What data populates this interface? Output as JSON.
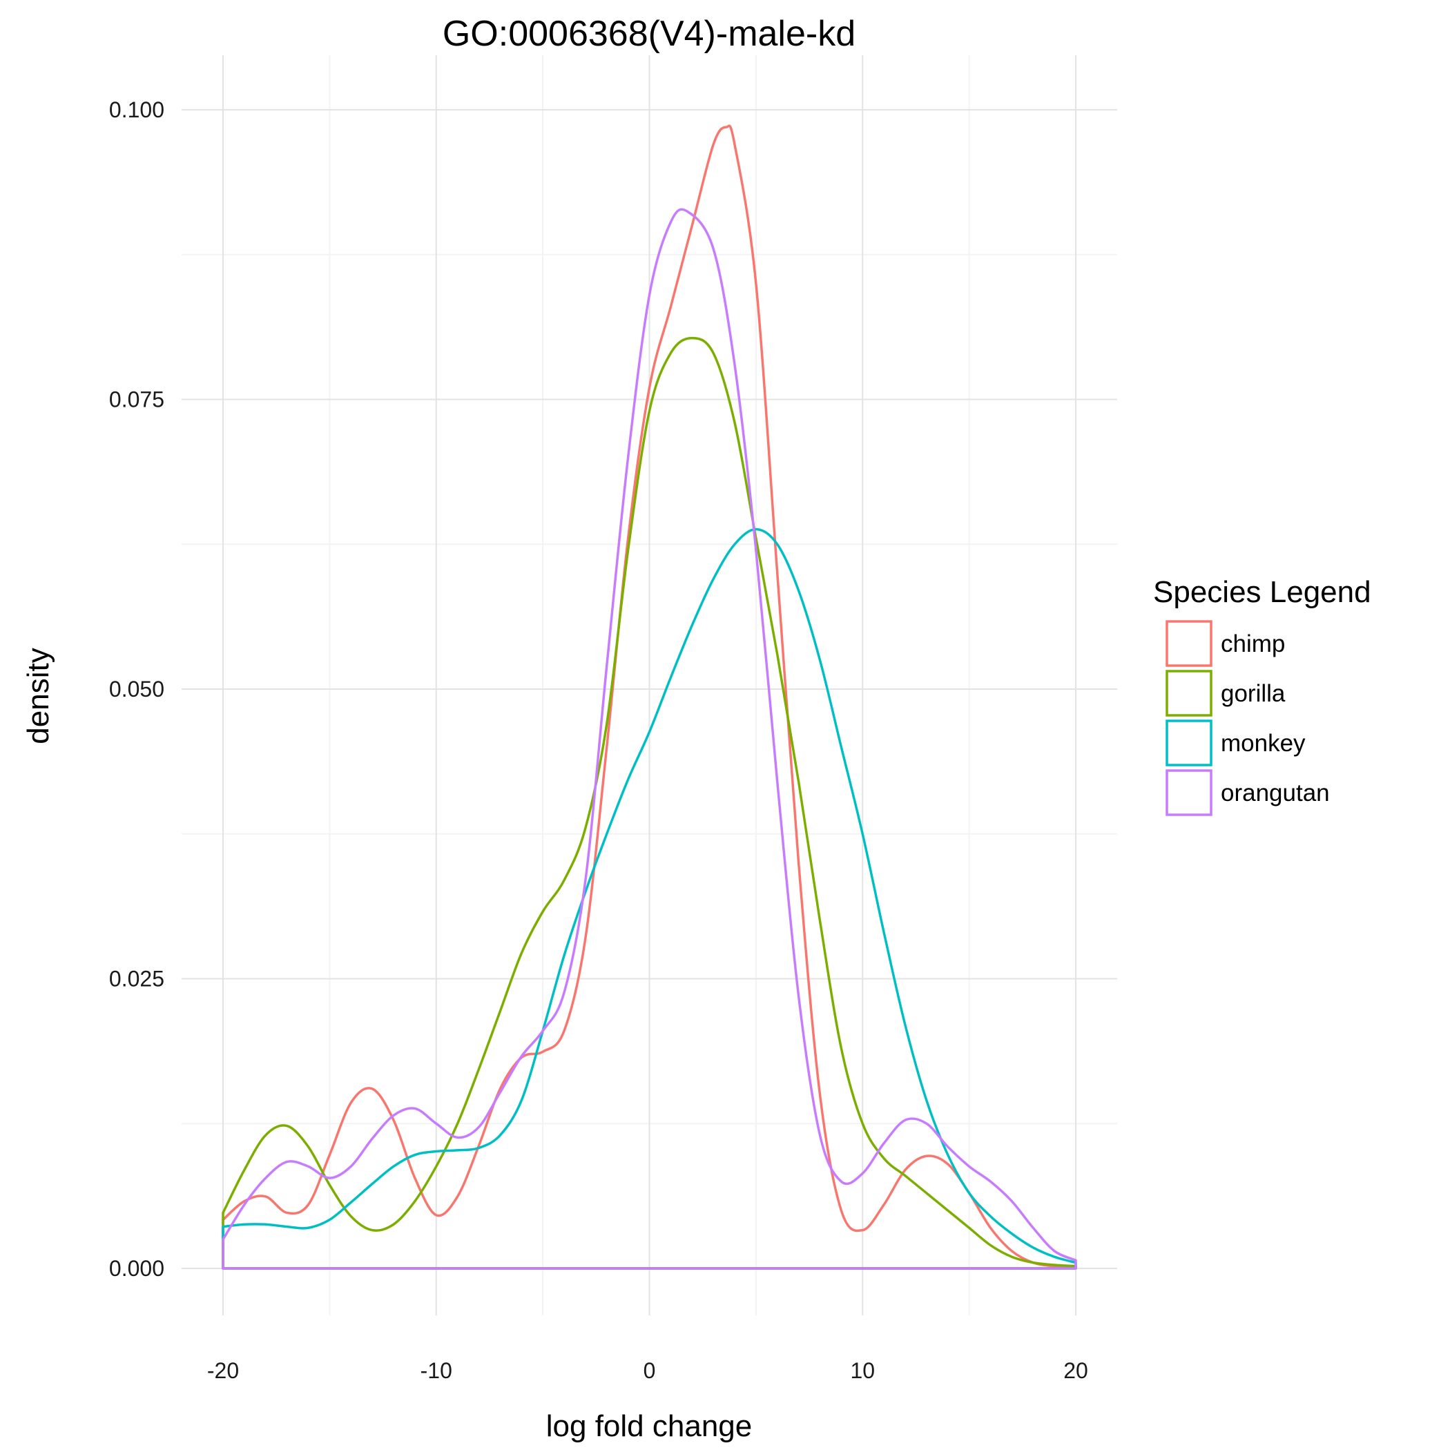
{
  "chart_data": {
    "type": "line",
    "title": "GO:0006368(V4)-male-kd",
    "xlabel": "log fold change",
    "ylabel": "density",
    "xlim": [
      -20,
      20
    ],
    "ylim": [
      0,
      0.1
    ],
    "x_ticks": [
      -20,
      -10,
      0,
      10,
      20
    ],
    "x_tick_labels": [
      "-20",
      "-10",
      "0",
      "10",
      "20"
    ],
    "y_ticks": [
      0,
      0.025,
      0.05,
      0.075,
      0.1
    ],
    "y_tick_labels": [
      "0.000",
      "0.025",
      "0.050",
      "0.075",
      "0.100"
    ],
    "grid": true,
    "legend": {
      "title": "Species Legend",
      "position": "right"
    },
    "series": [
      {
        "name": "chimp",
        "color": "#F8766D",
        "points": [
          [
            -20,
            0.0042
          ],
          [
            -19,
            0.0058
          ],
          [
            -18,
            0.0062
          ],
          [
            -17,
            0.0048
          ],
          [
            -16,
            0.0055
          ],
          [
            -15,
            0.0098
          ],
          [
            -14,
            0.0143
          ],
          [
            -13,
            0.0155
          ],
          [
            -12,
            0.0128
          ],
          [
            -11,
            0.0078
          ],
          [
            -10,
            0.0046
          ],
          [
            -9,
            0.0062
          ],
          [
            -8,
            0.0106
          ],
          [
            -7,
            0.0155
          ],
          [
            -6,
            0.0182
          ],
          [
            -5,
            0.0187
          ],
          [
            -4,
            0.0205
          ],
          [
            -3,
            0.0285
          ],
          [
            -2,
            0.045
          ],
          [
            -1,
            0.063
          ],
          [
            0,
            0.076
          ],
          [
            1,
            0.083
          ],
          [
            2,
            0.09
          ],
          [
            3,
            0.097
          ],
          [
            3.6,
            0.0985
          ],
          [
            4,
            0.097
          ],
          [
            5,
            0.085
          ],
          [
            6,
            0.06
          ],
          [
            7,
            0.035
          ],
          [
            8,
            0.015
          ],
          [
            9,
            0.005
          ],
          [
            10,
            0.0033
          ],
          [
            11,
            0.0055
          ],
          [
            12,
            0.0085
          ],
          [
            13,
            0.0097
          ],
          [
            14,
            0.009
          ],
          [
            15,
            0.0065
          ],
          [
            16,
            0.0035
          ],
          [
            17,
            0.0015
          ],
          [
            18,
            0.0005
          ],
          [
            19,
            0.0002
          ],
          [
            20,
            0.0002
          ]
        ]
      },
      {
        "name": "gorilla",
        "color": "#7CAE00",
        "points": [
          [
            -20,
            0.0048
          ],
          [
            -19,
            0.0085
          ],
          [
            -18,
            0.0115
          ],
          [
            -17,
            0.0123
          ],
          [
            -16,
            0.0105
          ],
          [
            -15,
            0.0072
          ],
          [
            -14,
            0.0045
          ],
          [
            -13,
            0.0033
          ],
          [
            -12,
            0.0038
          ],
          [
            -11,
            0.0058
          ],
          [
            -10,
            0.0088
          ],
          [
            -9,
            0.0125
          ],
          [
            -8,
            0.0172
          ],
          [
            -7,
            0.0222
          ],
          [
            -6,
            0.0272
          ],
          [
            -5,
            0.0308
          ],
          [
            -4,
            0.0335
          ],
          [
            -3,
            0.038
          ],
          [
            -2,
            0.047
          ],
          [
            -1,
            0.062
          ],
          [
            0,
            0.074
          ],
          [
            1,
            0.079
          ],
          [
            2,
            0.0803
          ],
          [
            3,
            0.079
          ],
          [
            4,
            0.073
          ],
          [
            5,
            0.063
          ],
          [
            6,
            0.053
          ],
          [
            7,
            0.042
          ],
          [
            8,
            0.03
          ],
          [
            9,
            0.019
          ],
          [
            10,
            0.0125
          ],
          [
            11,
            0.0095
          ],
          [
            12,
            0.008
          ],
          [
            13,
            0.0065
          ],
          [
            14,
            0.005
          ],
          [
            15,
            0.0035
          ],
          [
            16,
            0.002
          ],
          [
            17,
            0.001
          ],
          [
            18,
            0.0005
          ],
          [
            19,
            0.0003
          ],
          [
            20,
            0.0002
          ]
        ]
      },
      {
        "name": "monkey",
        "color": "#00BFC4",
        "points": [
          [
            -20,
            0.0036
          ],
          [
            -19,
            0.0038
          ],
          [
            -18,
            0.0038
          ],
          [
            -17,
            0.0036
          ],
          [
            -16,
            0.0035
          ],
          [
            -15,
            0.0042
          ],
          [
            -14,
            0.0057
          ],
          [
            -13,
            0.0073
          ],
          [
            -12,
            0.0088
          ],
          [
            -11,
            0.0098
          ],
          [
            -10,
            0.0101
          ],
          [
            -9,
            0.0102
          ],
          [
            -8,
            0.0104
          ],
          [
            -7,
            0.0115
          ],
          [
            -6,
            0.0145
          ],
          [
            -5,
            0.0205
          ],
          [
            -4,
            0.027
          ],
          [
            -3,
            0.0325
          ],
          [
            -2,
            0.0375
          ],
          [
            -1,
            0.0422
          ],
          [
            0,
            0.0463
          ],
          [
            1,
            0.051
          ],
          [
            2,
            0.0555
          ],
          [
            3,
            0.0595
          ],
          [
            4,
            0.0625
          ],
          [
            5,
            0.0638
          ],
          [
            6,
            0.0625
          ],
          [
            7,
            0.0585
          ],
          [
            8,
            0.0525
          ],
          [
            9,
            0.045
          ],
          [
            10,
            0.0375
          ],
          [
            11,
            0.029
          ],
          [
            12,
            0.021
          ],
          [
            13,
            0.0145
          ],
          [
            14,
            0.0098
          ],
          [
            15,
            0.0065
          ],
          [
            16,
            0.0045
          ],
          [
            17,
            0.003
          ],
          [
            18,
            0.0018
          ],
          [
            19,
            0.001
          ],
          [
            20,
            0.0005
          ]
        ]
      },
      {
        "name": "orangutan",
        "color": "#C77CFF",
        "points": [
          [
            -20,
            0.0025
          ],
          [
            -19,
            0.0055
          ],
          [
            -18,
            0.0078
          ],
          [
            -17,
            0.0092
          ],
          [
            -16,
            0.0088
          ],
          [
            -15,
            0.0078
          ],
          [
            -14,
            0.0088
          ],
          [
            -13,
            0.0112
          ],
          [
            -12,
            0.0132
          ],
          [
            -11,
            0.0138
          ],
          [
            -10,
            0.0125
          ],
          [
            -9,
            0.0113
          ],
          [
            -8,
            0.0122
          ],
          [
            -7,
            0.0152
          ],
          [
            -6,
            0.0183
          ],
          [
            -5,
            0.0205
          ],
          [
            -4,
            0.0238
          ],
          [
            -3,
            0.0335
          ],
          [
            -2,
            0.052
          ],
          [
            -1,
            0.07
          ],
          [
            0,
            0.084
          ],
          [
            1,
            0.0903
          ],
          [
            1.8,
            0.0912
          ],
          [
            3,
            0.088
          ],
          [
            4,
            0.078
          ],
          [
            5,
            0.062
          ],
          [
            6,
            0.042
          ],
          [
            7,
            0.0235
          ],
          [
            8,
            0.0115
          ],
          [
            9,
            0.0075
          ],
          [
            10,
            0.0082
          ],
          [
            11,
            0.0108
          ],
          [
            12,
            0.0128
          ],
          [
            13,
            0.0125
          ],
          [
            14,
            0.0105
          ],
          [
            15,
            0.0088
          ],
          [
            16,
            0.0075
          ],
          [
            17,
            0.0058
          ],
          [
            18,
            0.0035
          ],
          [
            19,
            0.0015
          ],
          [
            20,
            0.0007
          ]
        ]
      }
    ]
  }
}
